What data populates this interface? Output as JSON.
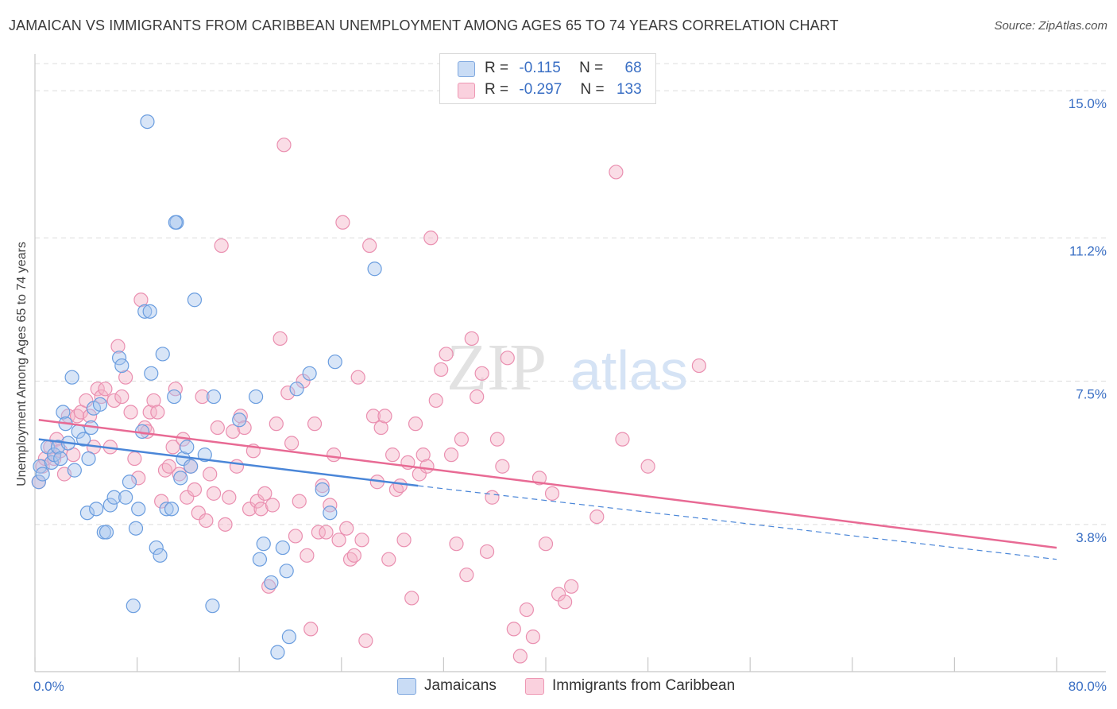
{
  "header": {
    "title": "JAMAICAN VS IMMIGRANTS FROM CARIBBEAN UNEMPLOYMENT AMONG AGES 65 TO 74 YEARS CORRELATION CHART",
    "source": "Source: ZipAtlas.com"
  },
  "watermark": {
    "part1": "ZIP",
    "part2": "atlas"
  },
  "legend": {
    "rows": [
      {
        "r_label": "R =",
        "r_value": "-0.115",
        "n_label": "N =",
        "n_value": "68",
        "color": "#a9c6ee"
      },
      {
        "r_label": "R =",
        "r_value": "-0.297",
        "n_label": "N =",
        "n_value": "133",
        "color": "#f5b3c8"
      }
    ]
  },
  "bottom_legend": {
    "items": [
      {
        "label": "Jamaicans",
        "color": "#a9c6ee"
      },
      {
        "label": "Immigrants from Caribbean",
        "color": "#f5b3c8"
      }
    ]
  },
  "chart_data": {
    "type": "scatter",
    "title": "JAMAICAN VS IMMIGRANTS FROM CARIBBEAN UNEMPLOYMENT AMONG AGES 65 TO 74 YEARS CORRELATION CHART",
    "xlabel": "",
    "ylabel": "Unemployment Among Ages 65 to 74 years",
    "xlim": [
      0,
      80
    ],
    "ylim": [
      0,
      15.7
    ],
    "x_tick_labels": [
      {
        "value": 0,
        "label": "0.0%"
      },
      {
        "value": 80,
        "label": "80.0%"
      }
    ],
    "y_tick_labels": [
      {
        "value": 3.8,
        "label": "3.8%"
      },
      {
        "value": 7.5,
        "label": "7.5%"
      },
      {
        "value": 11.2,
        "label": "11.2%"
      },
      {
        "value": 15.0,
        "label": "15.0%"
      }
    ],
    "grid": true,
    "legend_position": "top-center",
    "colors": {
      "jamaicans": "#4a86d8",
      "caribbean": "#e86a94",
      "jamaicans_fill": "#a9c6ee",
      "caribbean_fill": "#f5b3c8",
      "tick_label": "#3a6fc4"
    },
    "series": [
      {
        "name": "Jamaicans",
        "r": -0.115,
        "n": 68,
        "trend": {
          "x": [
            0.3,
            30.0
          ],
          "y": [
            6.0,
            4.8
          ],
          "dashed_to_x": 80,
          "dashed_to_y": 2.9
        },
        "points": [
          [
            0.3,
            4.9
          ],
          [
            0.4,
            5.3
          ],
          [
            0.6,
            5.1
          ],
          [
            1.0,
            5.8
          ],
          [
            1.3,
            5.4
          ],
          [
            1.5,
            5.6
          ],
          [
            1.8,
            5.8
          ],
          [
            2.0,
            5.5
          ],
          [
            2.2,
            6.7
          ],
          [
            2.4,
            6.4
          ],
          [
            2.6,
            5.9
          ],
          [
            2.9,
            7.6
          ],
          [
            3.1,
            5.2
          ],
          [
            3.4,
            6.2
          ],
          [
            3.8,
            6.0
          ],
          [
            4.2,
            5.5
          ],
          [
            4.4,
            6.3
          ],
          [
            4.6,
            6.8
          ],
          [
            5.1,
            6.9
          ],
          [
            4.1,
            4.1
          ],
          [
            4.8,
            4.2
          ],
          [
            5.4,
            3.6
          ],
          [
            5.6,
            3.6
          ],
          [
            5.9,
            4.3
          ],
          [
            6.2,
            4.5
          ],
          [
            6.6,
            8.1
          ],
          [
            6.8,
            7.9
          ],
          [
            7.1,
            4.5
          ],
          [
            7.4,
            4.9
          ],
          [
            7.7,
            1.7
          ],
          [
            7.9,
            3.7
          ],
          [
            8.1,
            4.2
          ],
          [
            8.4,
            6.2
          ],
          [
            8.6,
            9.3
          ],
          [
            8.8,
            14.2
          ],
          [
            9.1,
            7.7
          ],
          [
            9.5,
            3.2
          ],
          [
            9.8,
            3.0
          ],
          [
            10.0,
            8.2
          ],
          [
            10.3,
            4.2
          ],
          [
            10.7,
            4.2
          ],
          [
            10.9,
            7.1
          ],
          [
            11.1,
            11.6
          ],
          [
            11.4,
            5.0
          ],
          [
            11.6,
            5.5
          ],
          [
            11.9,
            5.8
          ],
          [
            12.2,
            5.3
          ],
          [
            12.5,
            9.6
          ],
          [
            13.3,
            5.6
          ],
          [
            13.9,
            1.7
          ],
          [
            14.0,
            7.1
          ],
          [
            16.0,
            6.5
          ],
          [
            17.3,
            7.1
          ],
          [
            17.6,
            2.9
          ],
          [
            17.9,
            3.3
          ],
          [
            19.0,
            0.5
          ],
          [
            19.4,
            3.2
          ],
          [
            19.7,
            2.6
          ],
          [
            19.9,
            0.9
          ],
          [
            18.5,
            2.3
          ],
          [
            20.5,
            7.3
          ],
          [
            21.5,
            7.7
          ],
          [
            22.5,
            4.7
          ],
          [
            23.1,
            4.1
          ],
          [
            23.5,
            8.0
          ],
          [
            26.6,
            10.4
          ],
          [
            11.0,
            11.6
          ],
          [
            9.0,
            9.3
          ]
        ]
      },
      {
        "name": "Immigrants from Caribbean",
        "r": -0.297,
        "n": 133,
        "trend": {
          "x": [
            0.3,
            80.0
          ],
          "y": [
            6.5,
            3.2
          ]
        },
        "points": [
          [
            0.3,
            4.9
          ],
          [
            0.6,
            5.3
          ],
          [
            0.8,
            5.5
          ],
          [
            1.2,
            5.8
          ],
          [
            1.5,
            5.5
          ],
          [
            1.7,
            6.0
          ],
          [
            2.0,
            5.7
          ],
          [
            2.3,
            5.1
          ],
          [
            2.6,
            6.6
          ],
          [
            3.0,
            5.6
          ],
          [
            3.3,
            6.6
          ],
          [
            3.6,
            6.7
          ],
          [
            4.0,
            7.0
          ],
          [
            4.3,
            6.6
          ],
          [
            4.6,
            5.8
          ],
          [
            4.9,
            7.3
          ],
          [
            5.2,
            7.1
          ],
          [
            5.5,
            7.3
          ],
          [
            5.9,
            5.8
          ],
          [
            6.2,
            7.0
          ],
          [
            6.5,
            8.4
          ],
          [
            6.8,
            7.1
          ],
          [
            7.1,
            7.6
          ],
          [
            7.5,
            6.7
          ],
          [
            7.8,
            5.5
          ],
          [
            8.1,
            5.0
          ],
          [
            8.3,
            9.6
          ],
          [
            8.6,
            6.3
          ],
          [
            8.8,
            6.2
          ],
          [
            9.0,
            6.7
          ],
          [
            9.3,
            7.0
          ],
          [
            9.6,
            6.7
          ],
          [
            9.9,
            4.4
          ],
          [
            10.2,
            5.2
          ],
          [
            10.5,
            5.3
          ],
          [
            10.8,
            5.8
          ],
          [
            11.0,
            7.3
          ],
          [
            11.3,
            5.1
          ],
          [
            11.6,
            6.0
          ],
          [
            11.9,
            4.5
          ],
          [
            12.2,
            5.3
          ],
          [
            12.5,
            4.7
          ],
          [
            12.8,
            4.1
          ],
          [
            13.1,
            7.1
          ],
          [
            13.4,
            3.9
          ],
          [
            13.7,
            5.1
          ],
          [
            14.0,
            4.6
          ],
          [
            14.3,
            6.3
          ],
          [
            14.6,
            11.0
          ],
          [
            14.9,
            3.8
          ],
          [
            15.2,
            4.5
          ],
          [
            15.5,
            6.2
          ],
          [
            15.8,
            5.3
          ],
          [
            16.1,
            6.6
          ],
          [
            16.4,
            6.3
          ],
          [
            16.8,
            4.2
          ],
          [
            17.1,
            5.7
          ],
          [
            17.4,
            4.4
          ],
          [
            17.7,
            4.2
          ],
          [
            18.0,
            4.6
          ],
          [
            18.3,
            2.2
          ],
          [
            18.6,
            4.3
          ],
          [
            18.9,
            6.4
          ],
          [
            19.2,
            8.6
          ],
          [
            19.5,
            13.6
          ],
          [
            19.8,
            7.2
          ],
          [
            20.1,
            5.9
          ],
          [
            20.4,
            3.5
          ],
          [
            20.7,
            4.4
          ],
          [
            21.0,
            7.5
          ],
          [
            21.3,
            3.0
          ],
          [
            21.6,
            1.1
          ],
          [
            21.9,
            6.4
          ],
          [
            22.2,
            3.6
          ],
          [
            22.5,
            4.8
          ],
          [
            22.8,
            3.6
          ],
          [
            23.1,
            4.3
          ],
          [
            23.4,
            5.6
          ],
          [
            23.8,
            3.4
          ],
          [
            24.1,
            11.6
          ],
          [
            24.4,
            3.7
          ],
          [
            24.7,
            2.9
          ],
          [
            25.0,
            3.0
          ],
          [
            25.3,
            7.6
          ],
          [
            25.6,
            3.4
          ],
          [
            25.9,
            0.8
          ],
          [
            26.2,
            11.0
          ],
          [
            26.5,
            6.6
          ],
          [
            26.8,
            4.9
          ],
          [
            27.1,
            6.3
          ],
          [
            27.4,
            6.6
          ],
          [
            27.7,
            2.9
          ],
          [
            28.0,
            5.6
          ],
          [
            28.3,
            4.7
          ],
          [
            28.6,
            4.8
          ],
          [
            28.9,
            3.4
          ],
          [
            29.2,
            5.4
          ],
          [
            29.5,
            1.9
          ],
          [
            29.8,
            6.4
          ],
          [
            30.1,
            5.1
          ],
          [
            30.4,
            5.6
          ],
          [
            30.7,
            5.3
          ],
          [
            31.0,
            11.2
          ],
          [
            31.4,
            7.0
          ],
          [
            31.8,
            7.8
          ],
          [
            32.2,
            8.2
          ],
          [
            32.6,
            5.6
          ],
          [
            33.0,
            3.3
          ],
          [
            33.4,
            6.0
          ],
          [
            33.8,
            2.5
          ],
          [
            34.2,
            8.6
          ],
          [
            34.6,
            7.1
          ],
          [
            35.0,
            7.7
          ],
          [
            35.4,
            3.1
          ],
          [
            35.8,
            4.5
          ],
          [
            36.2,
            6.0
          ],
          [
            36.6,
            5.3
          ],
          [
            37.0,
            8.1
          ],
          [
            37.5,
            1.1
          ],
          [
            38.0,
            0.4
          ],
          [
            38.5,
            1.6
          ],
          [
            39.0,
            0.9
          ],
          [
            39.5,
            5.0
          ],
          [
            40.0,
            3.3
          ],
          [
            40.5,
            4.6
          ],
          [
            41.0,
            2.0
          ],
          [
            41.5,
            1.8
          ],
          [
            42.0,
            2.2
          ],
          [
            44.0,
            4.0
          ],
          [
            45.5,
            12.9
          ],
          [
            46.0,
            6.0
          ],
          [
            48.0,
            5.3
          ],
          [
            52.0,
            7.9
          ]
        ]
      }
    ]
  }
}
